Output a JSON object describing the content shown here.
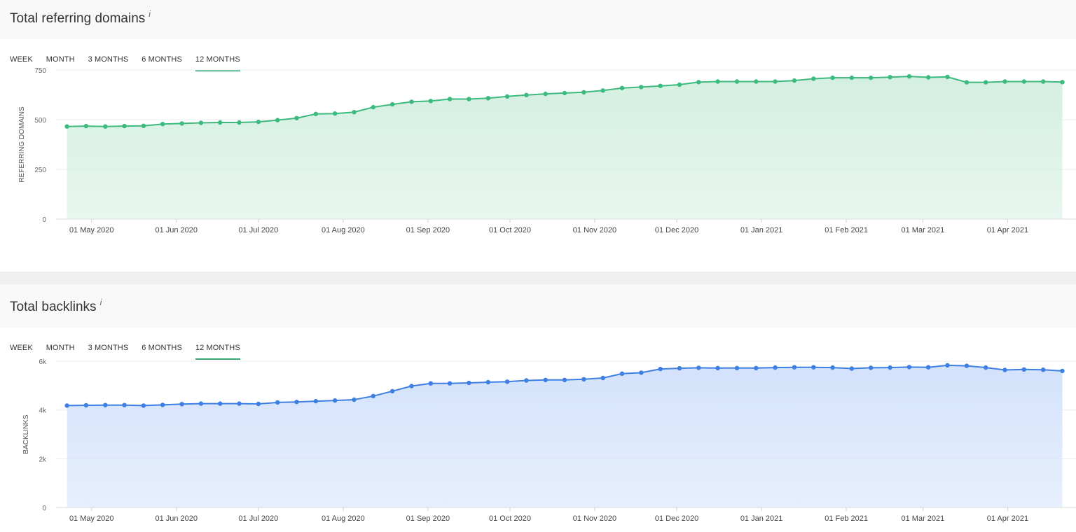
{
  "panels": [
    {
      "title": "Total referring domains",
      "info_icon": "i",
      "tabs": [
        "WEEK",
        "MONTH",
        "3 MONTHS",
        "6 MONTHS",
        "12 MONTHS"
      ],
      "active_tab": "12 MONTHS"
    },
    {
      "title": "Total backlinks",
      "info_icon": "i",
      "tabs": [
        "WEEK",
        "MONTH",
        "3 MONTHS",
        "6 MONTHS",
        "12 MONTHS"
      ],
      "active_tab": "12 MONTHS"
    }
  ],
  "chart_data": [
    {
      "type": "area",
      "ylabel": "REFERRING DOMAINS",
      "xlabel": "",
      "color": "#3dba7e",
      "fill_color": "#d4efe1",
      "y_ticks": [
        0,
        250,
        500,
        750
      ],
      "y_tick_labels": [
        "0",
        "250",
        "500",
        "750"
      ],
      "ylim": [
        0,
        750
      ],
      "grid": true,
      "x_tick_labels": [
        "01 May 2020",
        "01 Jun 2020",
        "01 Jul 2020",
        "01 Aug 2020",
        "01 Sep 2020",
        "01 Oct 2020",
        "01 Nov 2020",
        "01 Dec 2020",
        "01 Jan 2021",
        "01 Feb 2021",
        "01 Mar 2021",
        "01 Apr 2021"
      ],
      "x_ticks": [
        "2020-05-01",
        "2020-06-01",
        "2020-07-01",
        "2020-08-01",
        "2020-09-01",
        "2020-10-01",
        "2020-11-01",
        "2020-12-01",
        "2021-01-01",
        "2021-02-01",
        "2021-03-01",
        "2021-04-01"
      ],
      "x_range": [
        "2020-04-18",
        "2021-04-26"
      ],
      "x": [
        "2020-04-22",
        "2020-04-29",
        "2020-05-06",
        "2020-05-13",
        "2020-05-20",
        "2020-05-27",
        "2020-06-03",
        "2020-06-10",
        "2020-06-17",
        "2020-06-24",
        "2020-07-01",
        "2020-07-08",
        "2020-07-15",
        "2020-07-22",
        "2020-07-29",
        "2020-08-05",
        "2020-08-12",
        "2020-08-19",
        "2020-08-26",
        "2020-09-02",
        "2020-09-09",
        "2020-09-16",
        "2020-09-23",
        "2020-09-30",
        "2020-10-07",
        "2020-10-14",
        "2020-10-21",
        "2020-10-28",
        "2020-11-04",
        "2020-11-11",
        "2020-11-18",
        "2020-11-25",
        "2020-12-02",
        "2020-12-09",
        "2020-12-16",
        "2020-12-23",
        "2020-12-30",
        "2021-01-06",
        "2021-01-13",
        "2021-01-20",
        "2021-01-27",
        "2021-02-03",
        "2021-02-10",
        "2021-02-17",
        "2021-02-24",
        "2021-03-03",
        "2021-03-10",
        "2021-03-17",
        "2021-03-24",
        "2021-03-31",
        "2021-04-07",
        "2021-04-14",
        "2021-04-21"
      ],
      "values": [
        466,
        468,
        466,
        468,
        469,
        478,
        481,
        484,
        486,
        486,
        489,
        498,
        508,
        529,
        531,
        538,
        563,
        577,
        590,
        594,
        604,
        604,
        608,
        617,
        624,
        630,
        634,
        638,
        647,
        659,
        664,
        670,
        676,
        689,
        692,
        692,
        692,
        692,
        697,
        706,
        711,
        711,
        711,
        714,
        718,
        713,
        715,
        688,
        688,
        692,
        692,
        692,
        689
      ]
    },
    {
      "type": "area",
      "ylabel": "BACKLINKS",
      "xlabel": "",
      "color": "#3d7fe3",
      "fill_color": "#d3e2fb",
      "y_ticks": [
        0,
        2000,
        4000,
        6000
      ],
      "y_tick_labels": [
        "0",
        "2k",
        "4k",
        "6k"
      ],
      "ylim": [
        0,
        6000
      ],
      "grid": true,
      "x_tick_labels": [
        "01 May 2020",
        "01 Jun 2020",
        "01 Jul 2020",
        "01 Aug 2020",
        "01 Sep 2020",
        "01 Oct 2020",
        "01 Nov 2020",
        "01 Dec 2020",
        "01 Jan 2021",
        "01 Feb 2021",
        "01 Mar 2021",
        "01 Apr 2021"
      ],
      "x_ticks": [
        "2020-05-01",
        "2020-06-01",
        "2020-07-01",
        "2020-08-01",
        "2020-09-01",
        "2020-10-01",
        "2020-11-01",
        "2020-12-01",
        "2021-01-01",
        "2021-02-01",
        "2021-03-01",
        "2021-04-01"
      ],
      "x_range": [
        "2020-04-18",
        "2021-04-26"
      ],
      "x": [
        "2020-04-22",
        "2020-04-29",
        "2020-05-06",
        "2020-05-13",
        "2020-05-20",
        "2020-05-27",
        "2020-06-03",
        "2020-06-10",
        "2020-06-17",
        "2020-06-24",
        "2020-07-01",
        "2020-07-08",
        "2020-07-15",
        "2020-07-22",
        "2020-07-29",
        "2020-08-05",
        "2020-08-12",
        "2020-08-19",
        "2020-08-26",
        "2020-09-02",
        "2020-09-09",
        "2020-09-16",
        "2020-09-23",
        "2020-09-30",
        "2020-10-07",
        "2020-10-14",
        "2020-10-21",
        "2020-10-28",
        "2020-11-04",
        "2020-11-11",
        "2020-11-18",
        "2020-11-25",
        "2020-12-02",
        "2020-12-09",
        "2020-12-16",
        "2020-12-23",
        "2020-12-30",
        "2021-01-06",
        "2021-01-13",
        "2021-01-20",
        "2021-01-27",
        "2021-02-03",
        "2021-02-10",
        "2021-02-17",
        "2021-02-24",
        "2021-03-03",
        "2021-03-10",
        "2021-03-17",
        "2021-03-24",
        "2021-03-31",
        "2021-04-07",
        "2021-04-14",
        "2021-04-21"
      ],
      "values": [
        4180,
        4190,
        4200,
        4200,
        4180,
        4210,
        4240,
        4260,
        4260,
        4260,
        4250,
        4310,
        4330,
        4360,
        4390,
        4420,
        4570,
        4770,
        4980,
        5090,
        5090,
        5110,
        5140,
        5160,
        5210,
        5230,
        5230,
        5260,
        5310,
        5490,
        5530,
        5680,
        5710,
        5730,
        5720,
        5720,
        5720,
        5740,
        5750,
        5750,
        5740,
        5700,
        5730,
        5740,
        5760,
        5750,
        5830,
        5810,
        5740,
        5640,
        5660,
        5650,
        5600
      ]
    }
  ]
}
